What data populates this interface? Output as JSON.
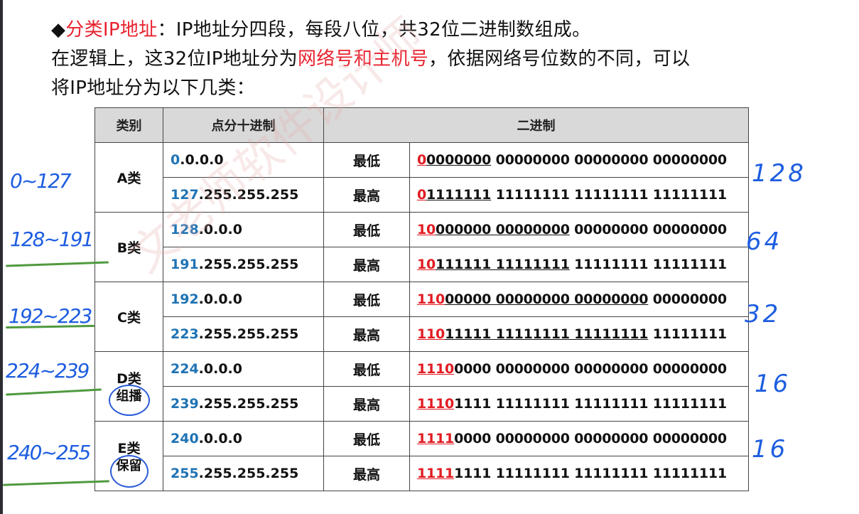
{
  "intro": {
    "bullet": "◆",
    "term": "分类IP地址",
    "line1_rest": "：IP地址分四段，每段八位，共32位二进制数组成。",
    "line2_pre": "在逻辑上，这32位IP地址分为",
    "line2_red": "网络号和主机号",
    "line2_post": "，依据网络号位数的不同，可以",
    "line3": "将IP地址分为以下几类："
  },
  "table": {
    "headers": {
      "class": "类别",
      "dotted": "点分十进制",
      "binary": "二进制"
    },
    "rows": [
      {
        "class": "A类",
        "sub": "",
        "rows": [
          {
            "dot_head": "0",
            "dot_tail": ".0.0.0",
            "level": "最低",
            "bin_red": "0",
            "bin_ul": "0000000",
            "bin_rest": " 00000000 00000000 00000000"
          },
          {
            "dot_head": "127",
            "dot_tail": ".255.255.255",
            "level": "最高",
            "bin_red": "0",
            "bin_ul": "1111111",
            "bin_rest": " 11111111 11111111 11111111"
          }
        ]
      },
      {
        "class": "B类",
        "sub": "",
        "rows": [
          {
            "dot_head": "128",
            "dot_tail": ".0.0.0",
            "level": "最低",
            "bin_red": "10",
            "bin_ul": "000000 00000000",
            "bin_rest": " 00000000 00000000"
          },
          {
            "dot_head": "191",
            "dot_tail": ".255.255.255",
            "level": "最高",
            "bin_red": "10",
            "bin_ul": "111111 11111111",
            "bin_rest": " 11111111 11111111"
          }
        ]
      },
      {
        "class": "C类",
        "sub": "",
        "rows": [
          {
            "dot_head": "192",
            "dot_tail": ".0.0.0",
            "level": "最低",
            "bin_red": "110",
            "bin_ul": "00000 00000000 00000000",
            "bin_rest": " 00000000"
          },
          {
            "dot_head": "223",
            "dot_tail": ".255.255.255",
            "level": "最高",
            "bin_red": "110",
            "bin_ul": "11111 11111111 11111111",
            "bin_rest": " 11111111"
          }
        ]
      },
      {
        "class": "D类",
        "sub": "组播",
        "rows": [
          {
            "dot_head": "224",
            "dot_tail": ".0.0.0",
            "level": "最低",
            "bin_red": "1110",
            "bin_ul": "",
            "bin_rest": "0000 00000000 00000000 00000000"
          },
          {
            "dot_head": "239",
            "dot_tail": ".255.255.255",
            "level": "最高",
            "bin_red": "1110",
            "bin_ul": "",
            "bin_rest": "1111 11111111 11111111 11111111"
          }
        ]
      },
      {
        "class": "E类",
        "sub": "保留",
        "rows": [
          {
            "dot_head": "240",
            "dot_tail": ".0.0.0",
            "level": "最低",
            "bin_red": "1111",
            "bin_ul": "",
            "bin_rest": "0000 00000000 00000000 00000000"
          },
          {
            "dot_head": "255",
            "dot_tail": ".255.255.255",
            "level": "最高",
            "bin_red": "1111",
            "bin_ul": "",
            "bin_rest": "1111 11111111 11111111 11111111"
          }
        ]
      }
    ]
  },
  "annotations_left": [
    "0~127",
    "128~191",
    "192~223",
    "224~239",
    "240~255"
  ],
  "annotations_right": [
    "128",
    "64",
    "32",
    "16",
    "16"
  ],
  "watermark": "文老师软件设计师"
}
